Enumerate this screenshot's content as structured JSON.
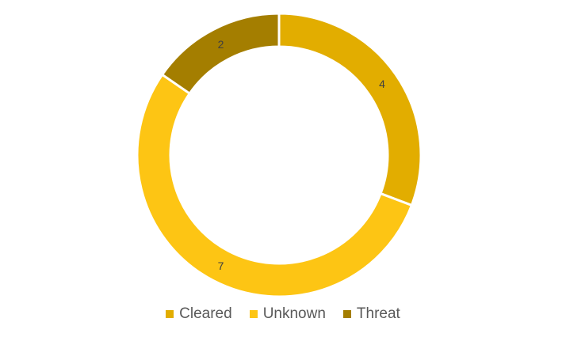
{
  "chart_data": {
    "type": "pie",
    "title": "",
    "categories": [
      "Cleared",
      "Unknown",
      "Threat"
    ],
    "values": [
      4,
      7,
      2
    ],
    "colors": [
      "#E2AD00",
      "#FDC514",
      "#A47E00"
    ],
    "style": "donut",
    "start_angle_deg": 0,
    "direction": "clockwise",
    "data_labels": [
      "4",
      "7",
      "2"
    ],
    "legend_position": "bottom"
  }
}
